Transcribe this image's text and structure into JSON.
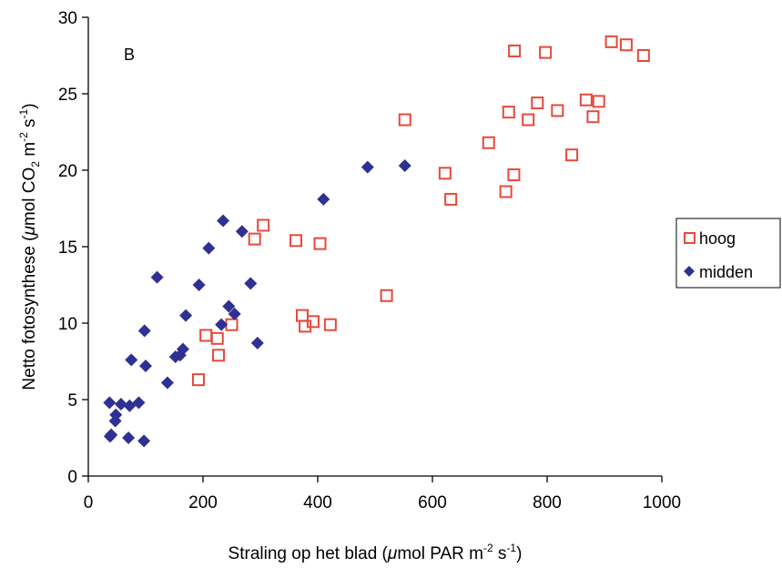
{
  "chart_data": {
    "type": "scatter",
    "panel_label": "B",
    "xlabel": {
      "prefix": "Straling op het blad (",
      "mu": "μ",
      "unit1": "mol PAR m",
      "sup1": "-2",
      "unit2": " s",
      "sup2": "-1",
      "suffix": ")"
    },
    "ylabel": {
      "prefix": "Netto fotosynthese (",
      "mu": "μ",
      "unit1": "mol CO",
      "sub1": "2",
      "unit2": " m",
      "sup1": "-2",
      "unit3": " s",
      "sup2": "-1",
      "suffix": ")"
    },
    "xlim": [
      0,
      1000
    ],
    "ylim": [
      0,
      30
    ],
    "xticks": [
      "0",
      "200",
      "400",
      "600",
      "800",
      "1000"
    ],
    "yticks": [
      "0",
      "5",
      "10",
      "15",
      "20",
      "25",
      "30"
    ],
    "xtick_values": [
      0,
      200,
      400,
      600,
      800,
      1000
    ],
    "ytick_values": [
      0,
      5,
      10,
      15,
      20,
      25,
      30
    ],
    "grid": false,
    "legend_position": "right",
    "series": [
      {
        "name": "hoog",
        "marker": "square-open",
        "color": "#e8483a",
        "points": [
          [
            192,
            6.3
          ],
          [
            205,
            9.2
          ],
          [
            225,
            9.0
          ],
          [
            227,
            7.9
          ],
          [
            250,
            9.9
          ],
          [
            290,
            15.5
          ],
          [
            305,
            16.4
          ],
          [
            362,
            15.4
          ],
          [
            373,
            10.5
          ],
          [
            378,
            9.8
          ],
          [
            392,
            10.1
          ],
          [
            404,
            15.2
          ],
          [
            422,
            9.9
          ],
          [
            520,
            11.8
          ],
          [
            552,
            23.3
          ],
          [
            622,
            19.8
          ],
          [
            632,
            18.1
          ],
          [
            698,
            21.8
          ],
          [
            728,
            18.6
          ],
          [
            733,
            23.8
          ],
          [
            742,
            19.7
          ],
          [
            743,
            27.8
          ],
          [
            767,
            23.3
          ],
          [
            783,
            24.4
          ],
          [
            797,
            27.7
          ],
          [
            818,
            23.9
          ],
          [
            843,
            21.0
          ],
          [
            868,
            24.6
          ],
          [
            880,
            23.5
          ],
          [
            890,
            24.5
          ],
          [
            912,
            28.4
          ],
          [
            938,
            28.2
          ],
          [
            968,
            27.5
          ]
        ]
      },
      {
        "name": "midden",
        "marker": "diamond-filled",
        "color": "#2e3192",
        "points": [
          [
            37,
            4.8
          ],
          [
            38,
            2.6
          ],
          [
            40,
            2.7
          ],
          [
            47,
            3.6
          ],
          [
            48,
            4.0
          ],
          [
            57,
            4.7
          ],
          [
            70,
            2.5
          ],
          [
            72,
            4.6
          ],
          [
            75,
            7.6
          ],
          [
            88,
            4.8
          ],
          [
            97,
            2.3
          ],
          [
            98,
            9.5
          ],
          [
            100,
            7.2
          ],
          [
            120,
            13.0
          ],
          [
            138,
            6.1
          ],
          [
            152,
            7.8
          ],
          [
            160,
            7.9
          ],
          [
            165,
            8.3
          ],
          [
            170,
            10.5
          ],
          [
            193,
            12.5
          ],
          [
            210,
            14.9
          ],
          [
            232,
            9.9
          ],
          [
            235,
            16.7
          ],
          [
            245,
            11.1
          ],
          [
            255,
            10.6
          ],
          [
            268,
            16.0
          ],
          [
            283,
            12.6
          ],
          [
            295,
            8.7
          ],
          [
            410,
            18.1
          ],
          [
            487,
            20.2
          ],
          [
            552,
            20.3
          ]
        ]
      }
    ]
  }
}
